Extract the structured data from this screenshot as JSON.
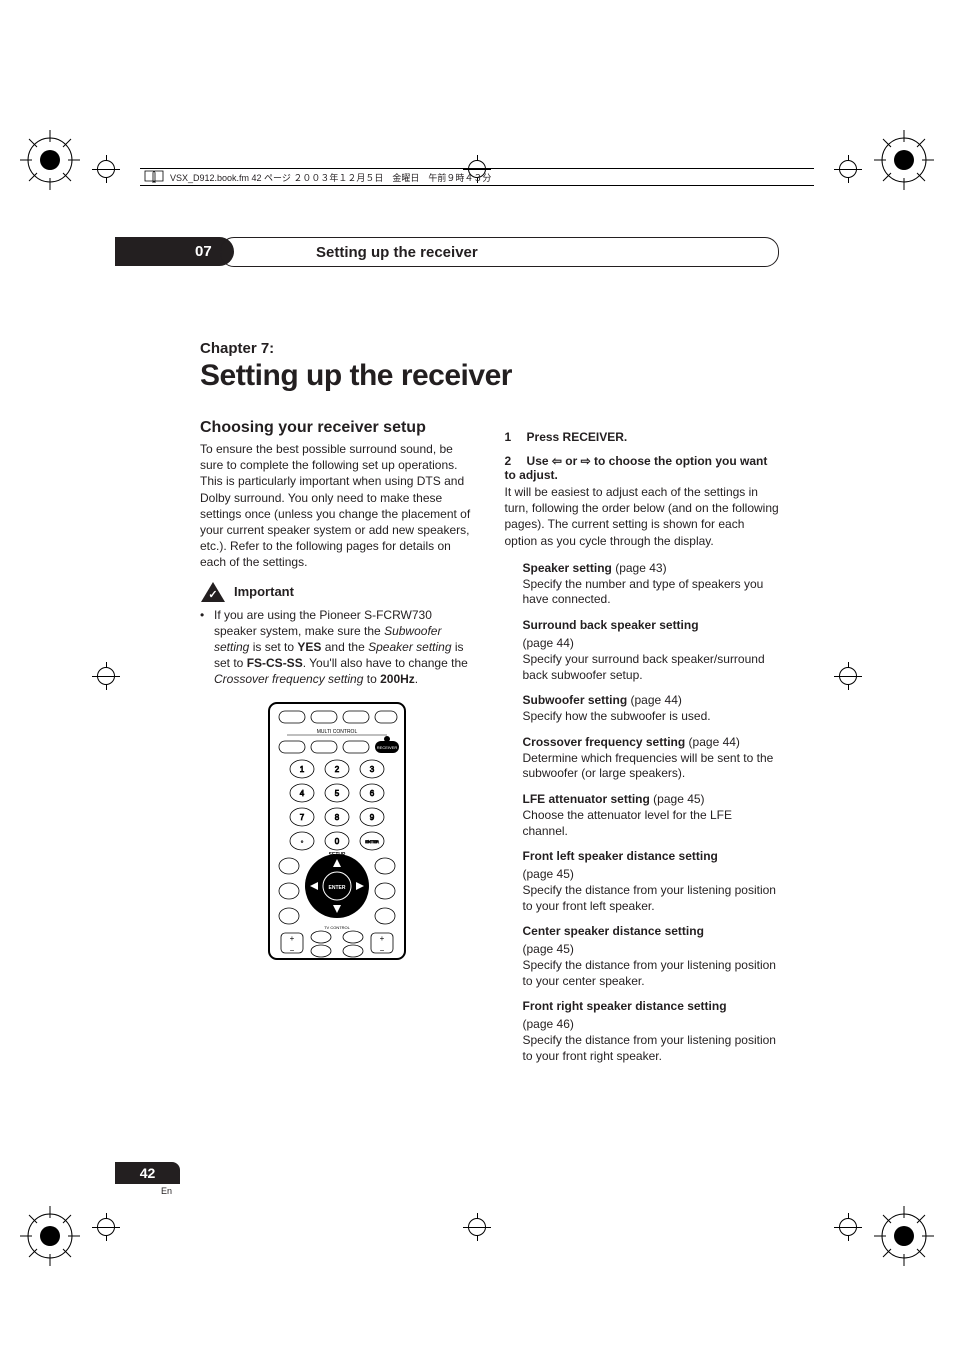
{
  "bookinfo": "VSX_D912.book.fm  42 ページ  ２００３年１２月５日　金曜日　午前９時４３分",
  "header": {
    "chapter_number": "07",
    "chapter_title_bar": "Setting up the receiver"
  },
  "chapter_label": "Chapter 7:",
  "main_title": "Setting up the receiver",
  "left": {
    "section_title": "Choosing your receiver setup",
    "intro": "To ensure the best possible surround sound, be sure to complete the following set up operations. This is particularly important when using DTS and Dolby surround. You only need to make these settings once (unless you change the placement of your current speaker system or add new speakers, etc.). Refer to the following pages for details on each of the settings.",
    "important_label": "Important",
    "bullet_pre": "If you are using the Pioneer S-FCRW730 speaker system, make sure the ",
    "bullet_sub_setting": "Subwoofer setting",
    "bullet_mid1": " is set to ",
    "bullet_yes": "YES",
    "bullet_mid2": " and the ",
    "bullet_spk_setting": "Speaker setting",
    "bullet_mid3": " is set to ",
    "bullet_fs": "FS-CS-SS",
    "bullet_mid4": ". You'll also have to change the ",
    "bullet_xover": "Crossover frequency setting",
    "bullet_mid5": " to ",
    "bullet_200": "200Hz",
    "bullet_end": "."
  },
  "right": {
    "step1_num": "1",
    "step1_label": "Press RECEIVER.",
    "step2_num": "2",
    "step2_pre": "Use ",
    "step2_or": " or ",
    "step2_post": " to choose the option you want to adjust.",
    "step2_body": "It will be easiest to adjust each of the settings in turn, following the order below (and on the following pages). The current setting is shown for each option as you cycle through the display.",
    "settings": [
      {
        "title": "Speaker setting",
        "pageref": " (page 43)",
        "desc": "Specify the number and type of speakers you have connected."
      },
      {
        "title": "Surround back speaker setting",
        "pageref": "(page 44)",
        "desc": "Specify your surround back speaker/surround back subwoofer setup."
      },
      {
        "title": "Subwoofer setting",
        "pageref": " (page 44)",
        "desc": "Specify how the subwoofer is used."
      },
      {
        "title": "Crossover frequency setting",
        "pageref": " (page 44)",
        "desc": "Determine which frequencies will be sent to the subwoofer (or large speakers)."
      },
      {
        "title": "LFE attenuator setting",
        "pageref": " (page 45)",
        "desc": "Choose the attenuator level for the LFE channel."
      },
      {
        "title": "Front left speaker distance setting",
        "pageref": "(page 45)",
        "desc": "Specify the distance from your listening position to your front left speaker."
      },
      {
        "title": "Center speaker distance setting",
        "pageref": "(page 45)",
        "desc": "Specify the distance from your listening position to your center speaker."
      },
      {
        "title": "Front right speaker distance setting",
        "pageref": "(page 46)",
        "desc": "Specify the distance from your listening position to your front right speaker."
      }
    ]
  },
  "page_number": "42",
  "page_lang": "En",
  "colors": {
    "text": "#231f20",
    "bg": "#ffffff"
  }
}
